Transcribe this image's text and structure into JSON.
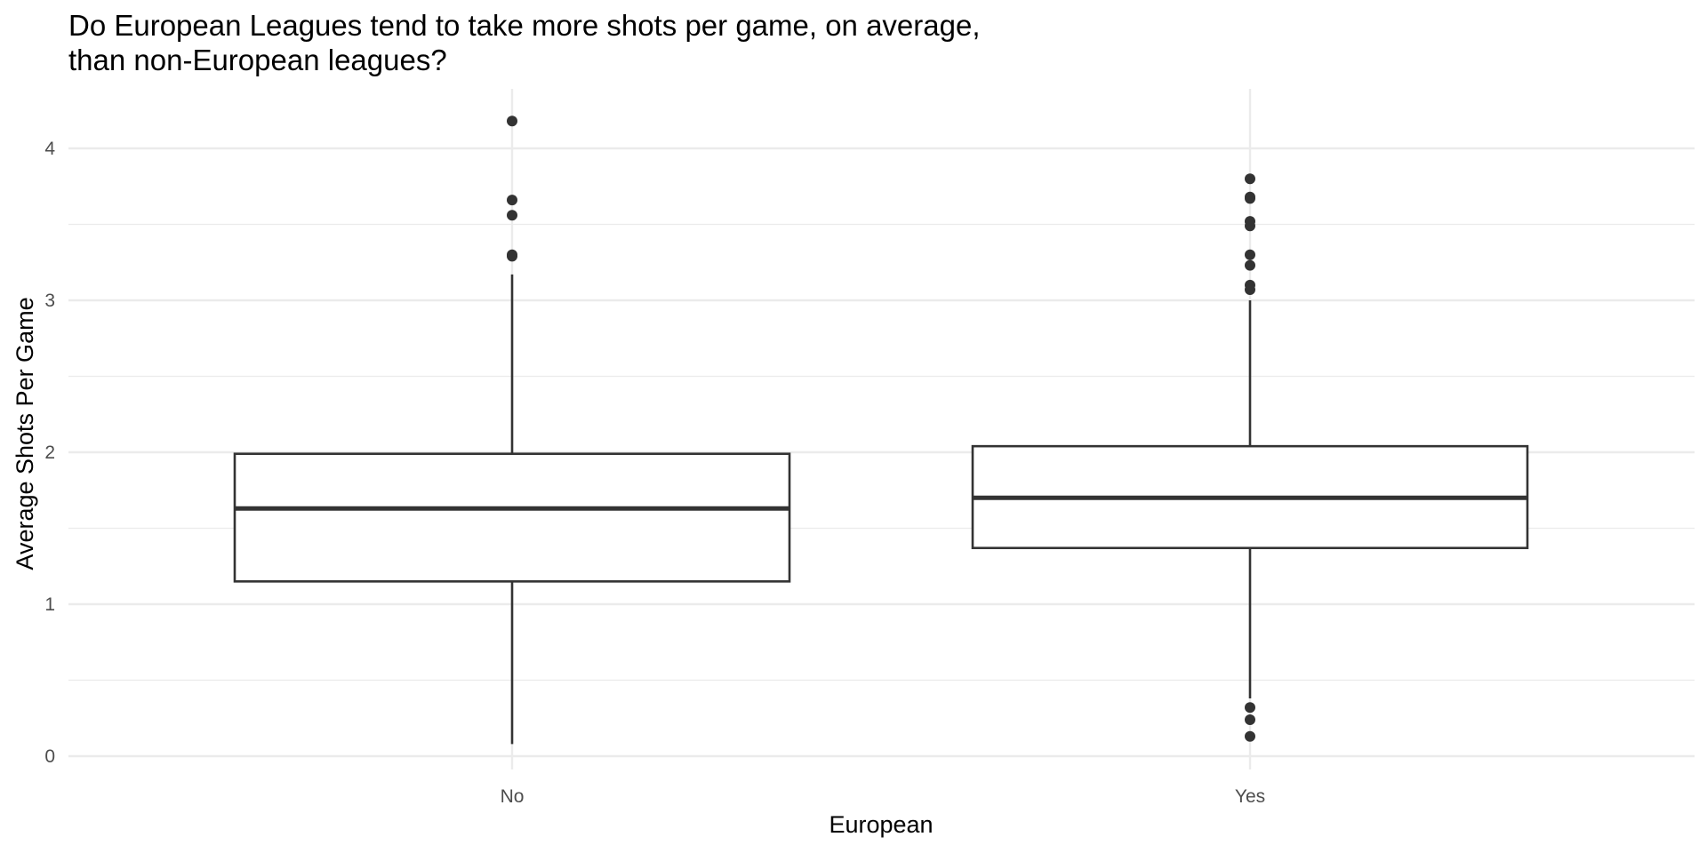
{
  "chart_data": {
    "type": "boxplot",
    "title_lines": [
      "Do European Leagues tend to take more shots per game, on average,",
      "than non-European leagues?"
    ],
    "xlabel": "European",
    "ylabel": "Average Shots Per Game",
    "categories": [
      "No",
      "Yes"
    ],
    "y_ticks": [
      "0",
      "1",
      "2",
      "3",
      "4"
    ],
    "ylim": [
      -0.1,
      4.4
    ],
    "grid": true,
    "legend": "none",
    "boxes": [
      {
        "category": "No",
        "q1": 1.15,
        "median": 1.63,
        "q3": 1.99,
        "whisker_low": 0.08,
        "whisker_high": 3.17,
        "outliers": [
          4.18,
          3.66,
          3.56,
          3.3,
          3.29
        ]
      },
      {
        "category": "Yes",
        "q1": 1.37,
        "median": 1.7,
        "q3": 2.04,
        "whisker_low": 0.38,
        "whisker_high": 3.0,
        "outliers": [
          3.8,
          3.68,
          3.67,
          3.52,
          3.49,
          3.3,
          3.23,
          3.1,
          3.07,
          0.32,
          0.24,
          0.13
        ]
      }
    ]
  }
}
